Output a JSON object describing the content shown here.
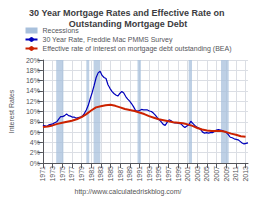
{
  "chart_data": {
    "type": "line",
    "title": "30 Year Mortgage Rates and Effective Rate on Outstanding Mortgage Debt",
    "ylabel": "Interest Rates",
    "annotation": "http://www.calculatedriskblog.com/",
    "xlim": [
      1971,
      2013.5
    ],
    "xticks": [
      1971,
      1973,
      1975,
      1977,
      1979,
      1981,
      1983,
      1985,
      1987,
      1989,
      1991,
      1993,
      1995,
      1997,
      1999,
      2001,
      2003,
      2005,
      2007,
      2009,
      2011,
      2013
    ],
    "ylim": [
      0,
      20
    ],
    "yticks": [
      {
        "value": 0,
        "label": "0%"
      },
      {
        "value": 2,
        "label": "2%"
      },
      {
        "value": 4,
        "label": "4%"
      },
      {
        "value": 6,
        "label": "6%"
      },
      {
        "value": 8,
        "label": "8%"
      },
      {
        "value": 10,
        "label": "10%"
      },
      {
        "value": 12,
        "label": "12%"
      },
      {
        "value": 14,
        "label": "14%"
      },
      {
        "value": 16,
        "label": "16%"
      },
      {
        "value": 18,
        "label": "18%"
      },
      {
        "value": 20,
        "label": "20%"
      }
    ],
    "grid": true,
    "legend": "top",
    "recessions": {
      "name": "Recessions",
      "color": "#a8c0dc",
      "ranges": [
        [
          1973.75,
          1975.25
        ],
        [
          1980.0,
          1980.6
        ],
        [
          1981.5,
          1982.9
        ],
        [
          1990.6,
          1991.3
        ],
        [
          2001.2,
          2001.9
        ],
        [
          2007.9,
          2009.5
        ]
      ]
    },
    "series": [
      {
        "name": "30 Year Rate, Freddie Mac PMMS Survey",
        "color": "#0000bb",
        "x": [
          1971,
          1971.4087,
          1971.8173,
          1972.226,
          1972.6346,
          1973.0433,
          1973.4519,
          1973.8606,
          1974.2692,
          1974.6779,
          1975.0865,
          1975.4952,
          1975.9038,
          1976.3125,
          1976.7212,
          1977.1298,
          1977.5385,
          1977.9471,
          1978.3558,
          1978.7644,
          1979.1731,
          1979.5817,
          1979.9904,
          1980.399,
          1980.8077,
          1981.2163,
          1981.625,
          1982.0337,
          1982.4423,
          1982.851,
          1983.2596,
          1983.6683,
          1984.0769,
          1984.4856,
          1984.8942,
          1985.3029,
          1985.7115,
          1986.1202,
          1986.5288,
          1986.9375,
          1987.3462,
          1987.7548,
          1988.1635,
          1988.5721,
          1988.9808,
          1989.3894,
          1989.7981,
          1990.2067,
          1990.6154,
          1991.024,
          1991.4327,
          1991.8413,
          1992.25,
          1992.6587,
          1993.0673,
          1993.476,
          1993.8846,
          1994.2933,
          1994.7019,
          1995.1106,
          1995.5192,
          1995.9279,
          1996.3365,
          1996.7452,
          1997.1538,
          1997.5625,
          1997.9712,
          1998.3798,
          1998.7885,
          1999.1971,
          1999.6058,
          2000.0144,
          2000.4231,
          2000.8317,
          2001.2404,
          2001.649,
          2002.0577,
          2002.4663,
          2002.875,
          2003.2837,
          2003.6923,
          2004.101,
          2004.5096,
          2004.9183,
          2005.3269,
          2005.7356,
          2006.1442,
          2006.5529,
          2006.9615,
          2007.3702,
          2007.7788,
          2008.1875,
          2008.5962,
          2009.0048,
          2009.4135,
          2009.8221,
          2010.2308,
          2010.6394,
          2011.0481,
          2011.4567,
          2011.8654,
          2012.274,
          2012.6827,
          2013.0913,
          2013.5
        ],
        "values": [
          7.3,
          7.2,
          7.1,
          7.4,
          7.5,
          7.6,
          7.8,
          8.0,
          8.5,
          9.0,
          9.0,
          9.2,
          9.5,
          9.2,
          9.1,
          8.9,
          8.9,
          8.7,
          8.8,
          8.9,
          9.1,
          9.6,
          10.3,
          11.2,
          12.5,
          13.7,
          15.1,
          16.6,
          17.5,
          17.8,
          17.0,
          16.6,
          16.4,
          15.2,
          14.5,
          13.9,
          13.5,
          13.2,
          13.0,
          13.5,
          13.9,
          13.6,
          12.9,
          12.4,
          12.0,
          11.5,
          10.9,
          10.2,
          10.1,
          10.2,
          10.4,
          10.3,
          10.3,
          10.3,
          10.1,
          10.0,
          9.7,
          9.3,
          8.8,
          8.4,
          8.0,
          7.5,
          7.3,
          7.9,
          8.4,
          8.2,
          7.9,
          7.8,
          7.8,
          7.7,
          7.6,
          7.2,
          6.9,
          7.2,
          7.4,
          8.1,
          7.7,
          7.3,
          7.0,
          6.8,
          6.5,
          6.0,
          5.8,
          5.9,
          5.8,
          5.9,
          5.9,
          6.1,
          6.4,
          6.5,
          6.4,
          6.3,
          6.1,
          5.9,
          5.5,
          5.0,
          4.9,
          4.7,
          4.6,
          4.5,
          4.2,
          3.9,
          3.7,
          3.8,
          3.9
        ]
      },
      {
        "name": "Effective rate of interest on mortgage debt outstanding (BEA)",
        "color": "#cc2200",
        "x": [
          1971,
          1972,
          1973,
          1974,
          1975,
          1976,
          1977,
          1978,
          1979,
          1980,
          1981,
          1982,
          1983,
          1984,
          1985,
          1986,
          1987,
          1988,
          1989,
          1990,
          1991,
          1992,
          1993,
          1994,
          1995,
          1996,
          1997,
          1998,
          1999,
          2000,
          2001,
          2002,
          2003,
          2004,
          2005,
          2006,
          2007,
          2008,
          2009,
          2010,
          2011,
          2012,
          2013
        ],
        "values": [
          7.0,
          7.1,
          7.3,
          7.6,
          7.8,
          8.0,
          8.2,
          8.5,
          8.9,
          9.5,
          10.2,
          10.8,
          11.0,
          11.2,
          11.3,
          11.1,
          10.8,
          10.5,
          10.3,
          10.1,
          9.8,
          9.5,
          9.1,
          8.8,
          8.5,
          8.3,
          8.1,
          7.9,
          7.8,
          7.7,
          7.5,
          7.2,
          6.8,
          6.5,
          6.3,
          6.2,
          6.2,
          6.2,
          6.0,
          5.7,
          5.5,
          5.2,
          5.1
        ]
      }
    ]
  }
}
